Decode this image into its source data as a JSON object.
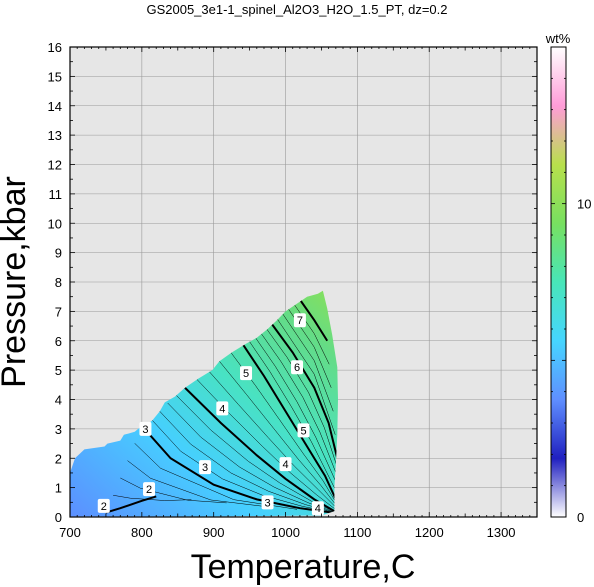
{
  "chart_data": {
    "type": "heatmap",
    "title": "GS2005_3e1-1_spinel_Al2O3_H2O_1.5_PT, dz=0.2",
    "xlabel": "Temperature,C",
    "ylabel": "Pressure,kbar",
    "xlim": [
      700,
      1350
    ],
    "ylim": [
      0,
      16
    ],
    "x_ticks": [
      "700",
      "800",
      "900",
      "1000",
      "1100",
      "1200",
      "1300"
    ],
    "y_ticks": [
      "0",
      "1",
      "2",
      "3",
      "4",
      "5",
      "6",
      "7",
      "8",
      "9",
      "10",
      "11",
      "12",
      "13",
      "14",
      "15",
      "16"
    ],
    "grid": true,
    "background_color": "#e6e6e6",
    "colorbar": {
      "label": "wt%",
      "range": [
        0,
        15
      ],
      "ticks": [
        "0",
        "10"
      ],
      "tick_values": [
        0,
        10
      ],
      "colors": [
        "#ffffff",
        "#2020c0",
        "#5f8fff",
        "#46d6ff",
        "#48e6b8",
        "#78e060",
        "#b8e04c",
        "#ff9cd8",
        "#ffffff"
      ],
      "placement": "right"
    },
    "field": {
      "description_region": "stable field",
      "boundary": [
        [
          700,
          0.1
        ],
        [
          700,
          1.5
        ],
        [
          707,
          2.0
        ],
        [
          720,
          2.3
        ],
        [
          748,
          2.4
        ],
        [
          752,
          2.5
        ],
        [
          770,
          2.6
        ],
        [
          775,
          2.8
        ],
        [
          790,
          2.9
        ],
        [
          800,
          3.1
        ],
        [
          805,
          3.1
        ],
        [
          815,
          3.3
        ],
        [
          825,
          3.6
        ],
        [
          832,
          3.9
        ],
        [
          846,
          4.1
        ],
        [
          860,
          4.4
        ],
        [
          878,
          4.7
        ],
        [
          898,
          5.0
        ],
        [
          908,
          5.3
        ],
        [
          925,
          5.6
        ],
        [
          945,
          5.9
        ],
        [
          960,
          6.1
        ],
        [
          975,
          6.4
        ],
        [
          988,
          6.7
        ],
        [
          1000,
          7.0
        ],
        [
          1018,
          7.3
        ],
        [
          1030,
          7.5
        ],
        [
          1045,
          7.6
        ],
        [
          1052,
          7.7
        ],
        [
          1058,
          7.1
        ],
        [
          1065,
          6.2
        ],
        [
          1072,
          5.1
        ],
        [
          1073,
          4.0
        ],
        [
          1072,
          2.8
        ],
        [
          1070,
          1.8
        ],
        [
          1068,
          1.0
        ],
        [
          1068,
          0.2
        ],
        [
          1050,
          0.05
        ],
        [
          900,
          0.02
        ],
        [
          700,
          0.02
        ]
      ],
      "value_at_corners": {
        "low_T_low_P": 2.0,
        "high_T_low_P": 4.0,
        "low_T_high_P": 3.0,
        "high_T_high_P": 8.0
      }
    },
    "contours": [
      {
        "level": 2,
        "label": "2",
        "points": [
          [
            750,
            0.15
          ],
          [
            770,
            0.3
          ],
          [
            800,
            0.55
          ],
          [
            820,
            0.7
          ]
        ],
        "bold": true
      },
      {
        "level": 3,
        "label": "3",
        "points": [
          [
            800,
            3.1
          ],
          [
            840,
            2.0
          ],
          [
            900,
            1.1
          ],
          [
            960,
            0.6
          ],
          [
            1020,
            0.3
          ],
          [
            1065,
            0.15
          ]
        ],
        "bold": true
      },
      {
        "level": 4,
        "label": "4",
        "points": [
          [
            860,
            4.4
          ],
          [
            910,
            3.2
          ],
          [
            960,
            2.1
          ],
          [
            1000,
            1.3
          ],
          [
            1040,
            0.6
          ],
          [
            1068,
            0.2
          ]
        ],
        "bold": true
      },
      {
        "level": 5,
        "label": "5",
        "points": [
          [
            940,
            5.9
          ],
          [
            970,
            4.8
          ],
          [
            1000,
            3.6
          ],
          [
            1030,
            2.4
          ],
          [
            1055,
            1.4
          ],
          [
            1070,
            0.6
          ]
        ],
        "bold": true
      },
      {
        "level": 6,
        "label": "6",
        "points": [
          [
            980,
            6.6
          ],
          [
            1010,
            5.6
          ],
          [
            1040,
            4.4
          ],
          [
            1060,
            3.2
          ],
          [
            1072,
            2.0
          ]
        ],
        "bold": true
      },
      {
        "level": 7,
        "label": "7",
        "points": [
          [
            1020,
            7.4
          ],
          [
            1040,
            6.7
          ],
          [
            1058,
            6.0
          ]
        ],
        "bold": true
      }
    ],
    "contour_labels": [
      {
        "text": "2",
        "x": 747,
        "y": 0.38
      },
      {
        "text": "2",
        "x": 810,
        "y": 0.95
      },
      {
        "text": "3",
        "x": 805,
        "y": 3.0
      },
      {
        "text": "3",
        "x": 888,
        "y": 1.7
      },
      {
        "text": "3",
        "x": 975,
        "y": 0.5
      },
      {
        "text": "4",
        "x": 912,
        "y": 3.7
      },
      {
        "text": "4",
        "x": 1000,
        "y": 1.8
      },
      {
        "text": "4",
        "x": 1045,
        "y": 0.3
      },
      {
        "text": "5",
        "x": 945,
        "y": 4.9
      },
      {
        "text": "5",
        "x": 1025,
        "y": 2.95
      },
      {
        "text": "6",
        "x": 1016,
        "y": 5.1
      },
      {
        "text": "7",
        "x": 1020,
        "y": 6.7
      }
    ]
  }
}
